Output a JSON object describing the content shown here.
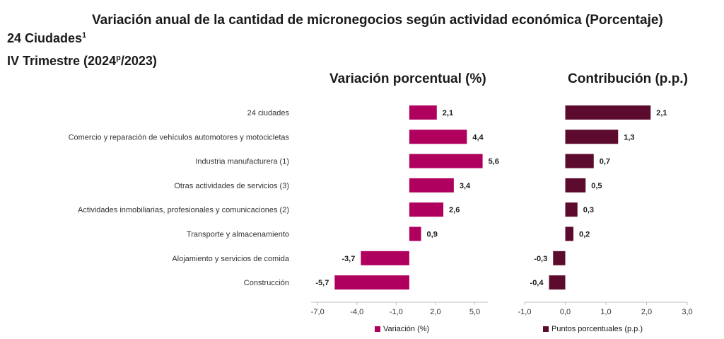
{
  "title": "Variación anual de la cantidad de micronegocios según actividad económica (Porcentaje)",
  "subtitle": "24 Ciudades",
  "subtitle_sup": "1",
  "period_prefix": "IV Trimestre (2024",
  "period_sup": "p",
  "period_suffix": "/2023)",
  "colors": {
    "variacion": "#B0005E",
    "contribucion": "#5C0A2E"
  },
  "chart_data": [
    {
      "type": "bar",
      "orientation": "horizontal",
      "title": "Variación porcentual (%)",
      "categories": [
        "24 ciudades",
        "Comercio y reparación de vehículos automotores y motocicletas",
        "Industria manufacturera (1)",
        "Otras actividades de servicios (3)",
        "Actividades inmobiliarias, profesionales y comunicaciones (2)",
        "Transporte y almacenamiento",
        "Alojamiento y servicios de comida",
        "Construcción"
      ],
      "series": [
        {
          "name": "Variación (%)",
          "values": [
            2.1,
            4.4,
            5.6,
            3.4,
            2.6,
            0.9,
            -3.7,
            -5.7
          ],
          "labels": [
            "2,1",
            "4,4",
            "5,6",
            "3,4",
            "2,6",
            "0,9",
            "-3,7",
            "-5,7"
          ]
        }
      ],
      "xticks": [
        -7.0,
        -4.0,
        -1.0,
        2.0,
        5.0
      ],
      "xtick_labels": [
        "-7,0",
        "-4,0",
        "-1,0",
        "2,0",
        "5,0"
      ],
      "xlim": [
        -7.5,
        6.0
      ],
      "legend": "bottom"
    },
    {
      "type": "bar",
      "orientation": "horizontal",
      "title": "Contribución (p.p.)",
      "categories": [
        "24 ciudades",
        "Comercio y reparación de vehículos automotores y motocicletas",
        "Industria manufacturera (1)",
        "Otras actividades de servicios (3)",
        "Actividades inmobiliarias, profesionales y comunicaciones (2)",
        "Transporte y almacenamiento",
        "Alojamiento y servicios de comida",
        "Construcción"
      ],
      "series": [
        {
          "name": "Puntos porcentuales (p.p.)",
          "values": [
            2.1,
            1.3,
            0.7,
            0.5,
            0.3,
            0.2,
            -0.3,
            -0.4
          ],
          "labels": [
            "2,1",
            "1,3",
            "0,7",
            "0,5",
            "0,3",
            "0,2",
            "-0,3",
            "-0,4"
          ]
        }
      ],
      "xticks": [
        -1.0,
        0.0,
        1.0,
        2.0,
        3.0
      ],
      "xtick_labels": [
        "-1,0",
        "0,0",
        "1,0",
        "2,0",
        "3,0"
      ],
      "xlim": [
        -1.0,
        3.0
      ],
      "legend": "bottom"
    }
  ]
}
